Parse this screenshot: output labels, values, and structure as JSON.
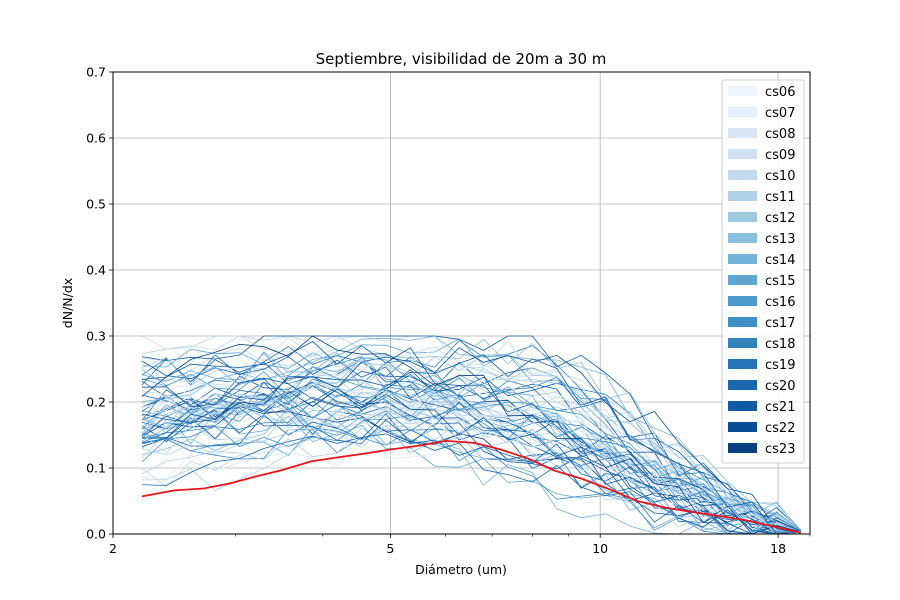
{
  "chart_data": {
    "type": "line",
    "title": "Septiembre, visibilidad de 20m a 30 m",
    "xlabel": "Diámetro (um)",
    "ylabel": "dN/N/dx",
    "x_scale": "log",
    "xlim": [
      2.0,
      20.0
    ],
    "ylim": [
      0.0,
      0.7
    ],
    "x_ticks": [
      2,
      5,
      10,
      18
    ],
    "x_tick_labels": [
      "2",
      "5",
      "10",
      "18"
    ],
    "y_ticks": [
      0.0,
      0.1,
      0.2,
      0.3,
      0.4,
      0.5,
      0.6,
      0.7
    ],
    "y_tick_labels": [
      "0.0",
      "0.1",
      "0.2",
      "0.3",
      "0.4",
      "0.5",
      "0.6",
      "0.7"
    ],
    "grid": true,
    "legend_position": "top-right",
    "legend": [
      {
        "label": "cs06",
        "color": "#eef5fc"
      },
      {
        "label": "cs07",
        "color": "#e4eff9"
      },
      {
        "label": "cs08",
        "color": "#d9e7f5"
      },
      {
        "label": "cs09",
        "color": "#cfe1f2"
      },
      {
        "label": "cs10",
        "color": "#c2d9ee"
      },
      {
        "label": "cs11",
        "color": "#b0d2e8"
      },
      {
        "label": "cs12",
        "color": "#9fcae1"
      },
      {
        "label": "cs13",
        "color": "#8abfdd"
      },
      {
        "label": "cs14",
        "color": "#74b3d8"
      },
      {
        "label": "cs15",
        "color": "#60a6d2"
      },
      {
        "label": "cs16",
        "color": "#4f9bcb"
      },
      {
        "label": "cs17",
        "color": "#3f8fc5"
      },
      {
        "label": "cs18",
        "color": "#3282be"
      },
      {
        "label": "cs19",
        "color": "#2474b7"
      },
      {
        "label": "cs20",
        "color": "#1967ad"
      },
      {
        "label": "cs21",
        "color": "#0f5aa3"
      },
      {
        "label": "cs22",
        "color": "#084d96"
      },
      {
        "label": "cs23",
        "color": "#083f80"
      }
    ],
    "mean_series": {
      "color": "#e8141b",
      "x": [
        2.2,
        2.45,
        2.7,
        2.95,
        3.2,
        3.5,
        3.85,
        4.2,
        4.6,
        5.0,
        5.5,
        6.0,
        6.6,
        7.2,
        7.9,
        8.6,
        9.4,
        10.3,
        11.3,
        12.4,
        13.6,
        14.9,
        16.3,
        17.8,
        19.4
      ],
      "y": [
        0.057,
        0.066,
        0.069,
        0.077,
        0.087,
        0.097,
        0.11,
        0.116,
        0.122,
        0.128,
        0.134,
        0.141,
        0.138,
        0.128,
        0.114,
        0.096,
        0.084,
        0.068,
        0.05,
        0.04,
        0.033,
        0.027,
        0.02,
        0.011,
        0.002
      ]
    }
  }
}
